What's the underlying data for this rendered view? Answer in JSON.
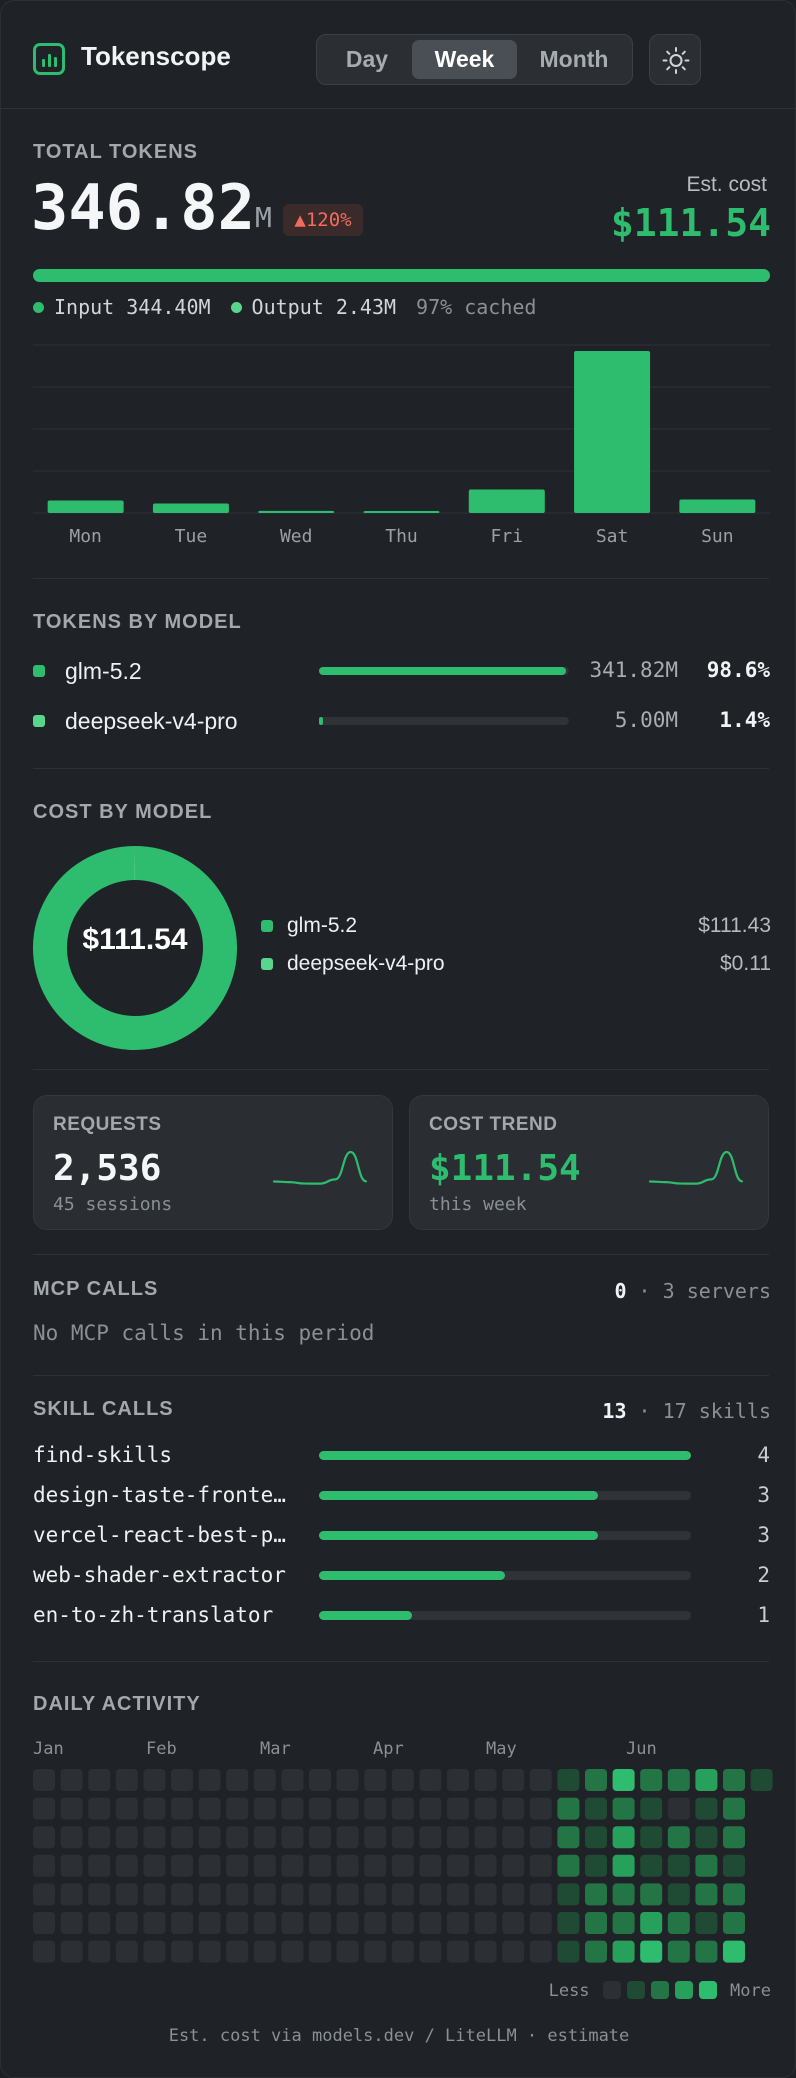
{
  "header": {
    "app_title": "Tokenscope",
    "logo_icon": "bar-chart-icon",
    "period_tabs": [
      "Day",
      "Week",
      "Month"
    ],
    "active_tab": "Week",
    "theme_icon": "sun-icon"
  },
  "total": {
    "label": "TOTAL TOKENS",
    "value": "346.82",
    "unit": "M",
    "delta": "▲120%",
    "est_cost_label": "Est. cost",
    "est_cost_value": "$111.54",
    "input_label": "Input 344.40M",
    "output_label": "Output 2.43M",
    "cached_label": "97% cached"
  },
  "colors": {
    "accent": "#2ebd6e",
    "accent_light": "#58d68d",
    "delta_red": "#f26b5b",
    "background": "#1f2226"
  },
  "chart_data": {
    "type": "bar",
    "categories": [
      "Mon",
      "Tue",
      "Wed",
      "Thu",
      "Fri",
      "Sat",
      "Sun"
    ],
    "values": [
      12.5,
      9.5,
      2.1,
      1.8,
      23.5,
      162,
      13.5
    ],
    "ylim": [
      0,
      168
    ],
    "title": "",
    "xlabel": "",
    "ylabel": "",
    "grid": true
  },
  "tokens_by_model": {
    "label": "TOKENS BY MODEL",
    "models": [
      {
        "name": "glm-5.2",
        "amount": "341.82M",
        "pct": "98.6%",
        "share": 0.986,
        "color": "#2ebd6e"
      },
      {
        "name": "deepseek-v4-pro",
        "amount": "5.00M",
        "pct": "1.4%",
        "share": 0.014,
        "color": "#58d68d"
      }
    ]
  },
  "cost_by_model": {
    "label": "COST BY MODEL",
    "total": "$111.54",
    "models": [
      {
        "name": "glm-5.2",
        "cost": "$111.43",
        "share": 0.999,
        "color": "#2ebd6e"
      },
      {
        "name": "deepseek-v4-pro",
        "cost": "$0.11",
        "share": 0.001,
        "color": "#58d68d"
      }
    ]
  },
  "cards": {
    "requests": {
      "label": "REQUESTS",
      "value": "2,536",
      "sub": "45 sessions"
    },
    "cost_trend": {
      "label": "COST TREND",
      "value": "$111.54",
      "sub": "this week"
    },
    "sparkline": [
      12.5,
      9.5,
      2.1,
      1.8,
      23.5,
      162,
      13.5
    ]
  },
  "mcp": {
    "label": "MCP CALLS",
    "count": "0",
    "servers": "· 3 servers",
    "empty_text": "No MCP calls in this period"
  },
  "skills": {
    "label": "SKILL CALLS",
    "count": "13",
    "total_skills": "· 17 skills",
    "items": [
      {
        "name": "find-skills",
        "count": "4",
        "value": 4
      },
      {
        "name": "design-taste-fronte…",
        "count": "3",
        "value": 3
      },
      {
        "name": "vercel-react-best-p…",
        "count": "3",
        "value": 3
      },
      {
        "name": "web-shader-extractor",
        "count": "2",
        "value": 2
      },
      {
        "name": "en-to-zh-translator",
        "count": "1",
        "value": 1
      }
    ],
    "max": 4
  },
  "activity": {
    "label": "DAILY ACTIVITY",
    "months": [
      "Jan",
      "Feb",
      "Mar",
      "Apr",
      "May",
      "Jun"
    ],
    "less_label": "Less",
    "more_label": "More",
    "levels": [
      [
        0,
        0,
        0,
        0,
        0,
        0,
        0,
        0,
        0,
        0,
        0,
        0,
        0,
        0,
        0,
        0,
        0,
        0,
        0,
        1,
        2,
        4,
        2,
        2,
        3,
        2,
        1
      ],
      [
        0,
        0,
        0,
        0,
        0,
        0,
        0,
        0,
        0,
        0,
        0,
        0,
        0,
        0,
        0,
        0,
        0,
        0,
        0,
        2,
        1,
        2,
        1,
        0,
        1,
        2,
        null
      ],
      [
        0,
        0,
        0,
        0,
        0,
        0,
        0,
        0,
        0,
        0,
        0,
        0,
        0,
        0,
        0,
        0,
        0,
        0,
        0,
        2,
        1,
        3,
        1,
        2,
        1,
        2,
        null
      ],
      [
        0,
        0,
        0,
        0,
        0,
        0,
        0,
        0,
        0,
        0,
        0,
        0,
        0,
        0,
        0,
        0,
        0,
        0,
        0,
        2,
        1,
        3,
        1,
        1,
        2,
        1,
        null
      ],
      [
        0,
        0,
        0,
        0,
        0,
        0,
        0,
        0,
        0,
        0,
        0,
        0,
        0,
        0,
        0,
        0,
        0,
        0,
        0,
        1,
        2,
        2,
        2,
        1,
        2,
        2,
        null
      ],
      [
        0,
        0,
        0,
        0,
        0,
        0,
        0,
        0,
        0,
        0,
        0,
        0,
        0,
        0,
        0,
        0,
        0,
        0,
        0,
        1,
        2,
        2,
        3,
        2,
        1,
        2,
        null
      ],
      [
        0,
        0,
        0,
        0,
        0,
        0,
        0,
        0,
        0,
        0,
        0,
        0,
        0,
        0,
        0,
        0,
        0,
        0,
        0,
        1,
        2,
        3,
        4,
        2,
        2,
        4,
        null
      ]
    ],
    "scale_colors": [
      "#2c3035",
      "#1f4a33",
      "#237545",
      "#26a05a",
      "#2ebd6e"
    ]
  },
  "footer": "Est. cost via models.dev / LiteLLM · estimate"
}
